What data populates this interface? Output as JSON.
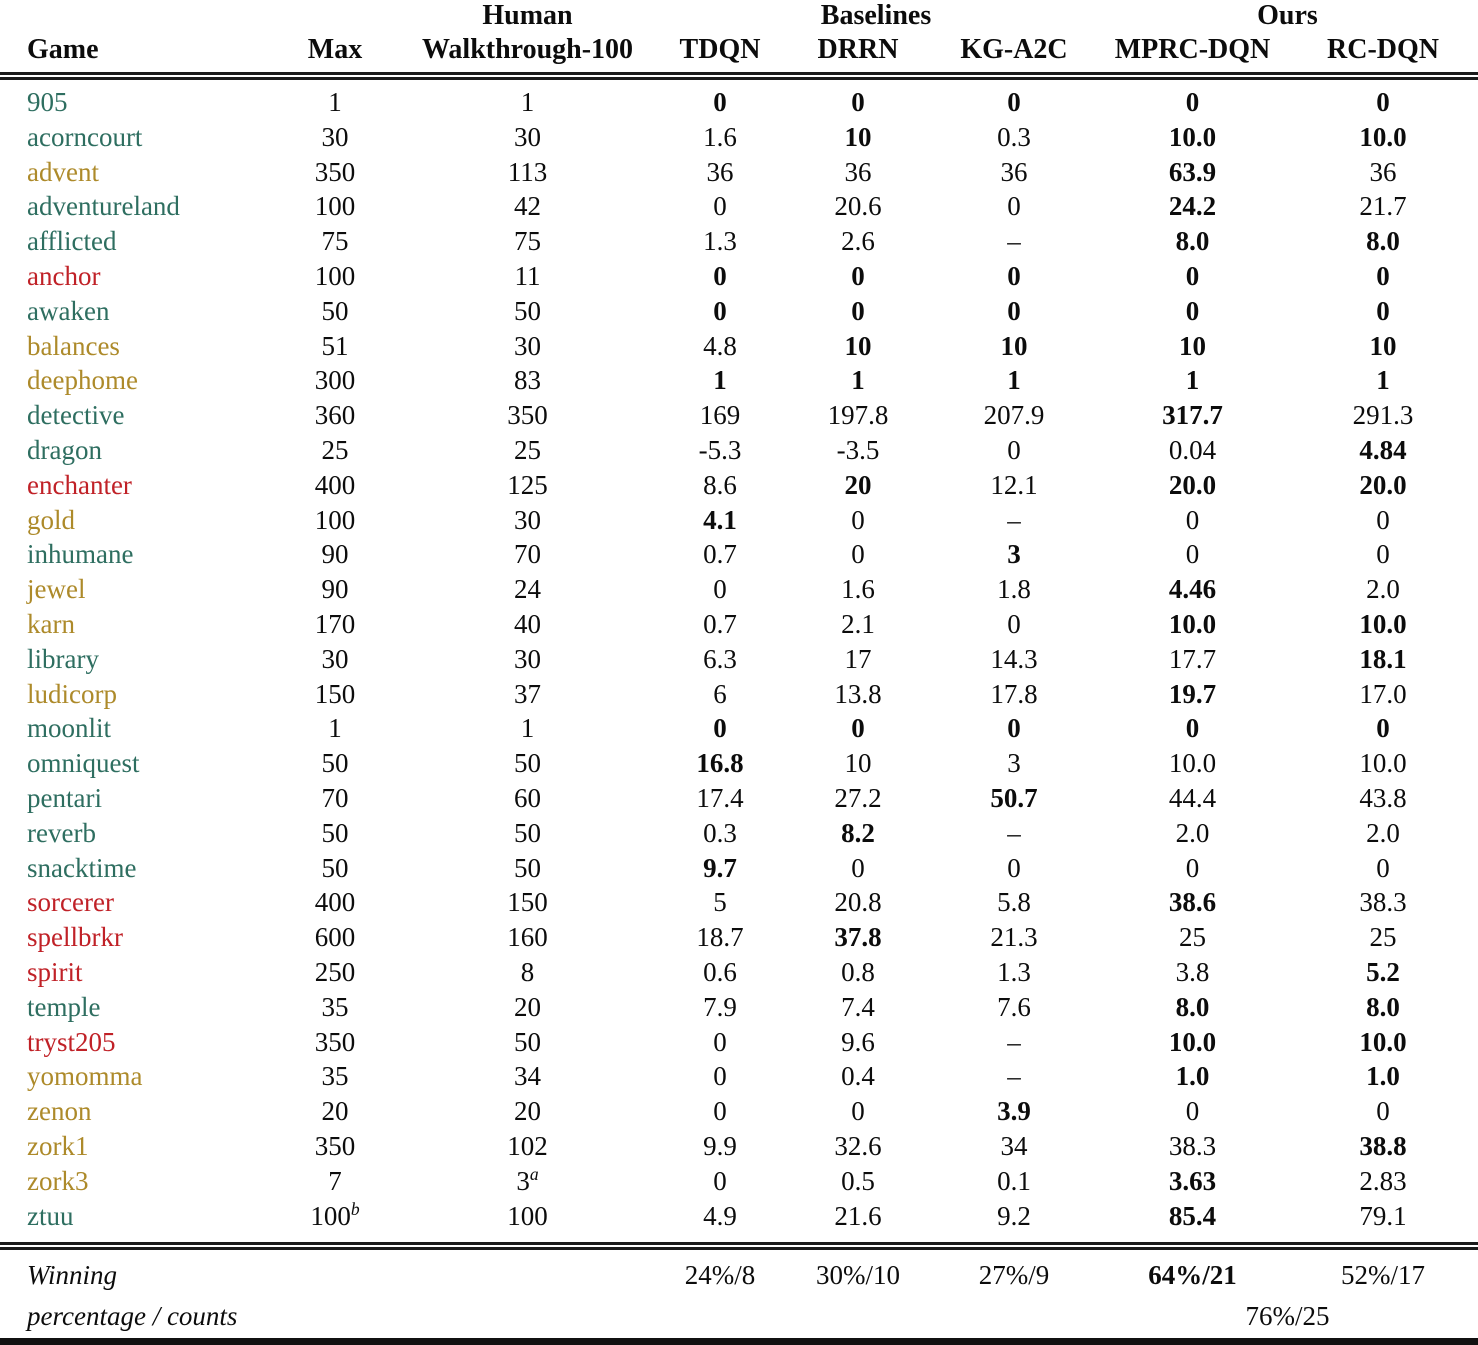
{
  "header": {
    "group_human": "Human",
    "group_baselines": "Baselines",
    "group_ours": "Ours",
    "columns": [
      "Game",
      "Max",
      "Walkthrough-100",
      "TDQN",
      "DRRN",
      "KG-A2C",
      "MPRC-DQN",
      "RC-DQN"
    ]
  },
  "legend_colors": {
    "green": "#2e6e60",
    "olive": "#ad8a2a",
    "red": "#c02127",
    "text": "#0c0c0c"
  },
  "rows": [
    {
      "game": "905",
      "color": "green",
      "cells": [
        {
          "t": "1"
        },
        {
          "t": "1"
        },
        {
          "t": "0",
          "b": 1
        },
        {
          "t": "0",
          "b": 1
        },
        {
          "t": "0",
          "b": 1
        },
        {
          "t": "0",
          "b": 1
        },
        {
          "t": "0",
          "b": 1
        }
      ]
    },
    {
      "game": "acorncourt",
      "color": "green",
      "cells": [
        {
          "t": "30"
        },
        {
          "t": "30"
        },
        {
          "t": "1.6"
        },
        {
          "t": "10",
          "b": 1
        },
        {
          "t": "0.3"
        },
        {
          "t": "10.0",
          "b": 1
        },
        {
          "t": "10.0",
          "b": 1
        }
      ]
    },
    {
      "game": "advent",
      "color": "olive",
      "cells": [
        {
          "t": "350"
        },
        {
          "t": "113"
        },
        {
          "t": "36"
        },
        {
          "t": "36"
        },
        {
          "t": "36"
        },
        {
          "t": "63.9",
          "b": 1
        },
        {
          "t": "36"
        }
      ]
    },
    {
      "game": "adventureland",
      "color": "green",
      "cells": [
        {
          "t": "100"
        },
        {
          "t": "42"
        },
        {
          "t": "0"
        },
        {
          "t": "20.6"
        },
        {
          "t": "0"
        },
        {
          "t": "24.2",
          "b": 1
        },
        {
          "t": "21.7"
        }
      ]
    },
    {
      "game": "afflicted",
      "color": "green",
      "cells": [
        {
          "t": "75"
        },
        {
          "t": "75"
        },
        {
          "t": "1.3"
        },
        {
          "t": "2.6"
        },
        {
          "t": "–"
        },
        {
          "t": "8.0",
          "b": 1
        },
        {
          "t": "8.0",
          "b": 1
        }
      ]
    },
    {
      "game": "anchor",
      "color": "red",
      "cells": [
        {
          "t": "100"
        },
        {
          "t": "11"
        },
        {
          "t": "0",
          "b": 1
        },
        {
          "t": "0",
          "b": 1
        },
        {
          "t": "0",
          "b": 1
        },
        {
          "t": "0",
          "b": 1
        },
        {
          "t": "0",
          "b": 1
        }
      ]
    },
    {
      "game": "awaken",
      "color": "green",
      "cells": [
        {
          "t": "50"
        },
        {
          "t": "50"
        },
        {
          "t": "0",
          "b": 1
        },
        {
          "t": "0",
          "b": 1
        },
        {
          "t": "0",
          "b": 1
        },
        {
          "t": "0",
          "b": 1
        },
        {
          "t": "0",
          "b": 1
        }
      ]
    },
    {
      "game": "balances",
      "color": "olive",
      "cells": [
        {
          "t": "51"
        },
        {
          "t": "30"
        },
        {
          "t": "4.8"
        },
        {
          "t": "10",
          "b": 1
        },
        {
          "t": "10",
          "b": 1
        },
        {
          "t": "10",
          "b": 1
        },
        {
          "t": "10",
          "b": 1
        }
      ]
    },
    {
      "game": "deephome",
      "color": "olive",
      "cells": [
        {
          "t": "300"
        },
        {
          "t": "83"
        },
        {
          "t": "1",
          "b": 1
        },
        {
          "t": "1",
          "b": 1
        },
        {
          "t": "1",
          "b": 1
        },
        {
          "t": "1",
          "b": 1
        },
        {
          "t": "1",
          "b": 1
        }
      ]
    },
    {
      "game": "detective",
      "color": "green",
      "cells": [
        {
          "t": "360"
        },
        {
          "t": "350"
        },
        {
          "t": "169"
        },
        {
          "t": "197.8"
        },
        {
          "t": "207.9"
        },
        {
          "t": "317.7",
          "b": 1
        },
        {
          "t": "291.3"
        }
      ]
    },
    {
      "game": "dragon",
      "color": "green",
      "cells": [
        {
          "t": "25"
        },
        {
          "t": "25"
        },
        {
          "t": "-5.3"
        },
        {
          "t": "-3.5"
        },
        {
          "t": "0"
        },
        {
          "t": "0.04"
        },
        {
          "t": "4.84",
          "b": 1
        }
      ]
    },
    {
      "game": "enchanter",
      "color": "red",
      "cells": [
        {
          "t": "400"
        },
        {
          "t": "125"
        },
        {
          "t": "8.6"
        },
        {
          "t": "20",
          "b": 1
        },
        {
          "t": "12.1"
        },
        {
          "t": "20.0",
          "b": 1
        },
        {
          "t": "20.0",
          "b": 1
        }
      ]
    },
    {
      "game": "gold",
      "color": "olive",
      "cells": [
        {
          "t": "100"
        },
        {
          "t": "30"
        },
        {
          "t": "4.1",
          "b": 1
        },
        {
          "t": "0"
        },
        {
          "t": "–"
        },
        {
          "t": "0"
        },
        {
          "t": "0"
        }
      ]
    },
    {
      "game": "inhumane",
      "color": "green",
      "cells": [
        {
          "t": "90"
        },
        {
          "t": "70"
        },
        {
          "t": "0.7"
        },
        {
          "t": "0"
        },
        {
          "t": "3",
          "b": 1
        },
        {
          "t": "0"
        },
        {
          "t": "0"
        }
      ]
    },
    {
      "game": "jewel",
      "color": "olive",
      "cells": [
        {
          "t": "90"
        },
        {
          "t": "24"
        },
        {
          "t": "0"
        },
        {
          "t": "1.6"
        },
        {
          "t": "1.8"
        },
        {
          "t": "4.46",
          "b": 1
        },
        {
          "t": "2.0"
        }
      ]
    },
    {
      "game": "karn",
      "color": "olive",
      "cells": [
        {
          "t": "170"
        },
        {
          "t": "40"
        },
        {
          "t": "0.7"
        },
        {
          "t": "2.1"
        },
        {
          "t": "0"
        },
        {
          "t": "10.0",
          "b": 1
        },
        {
          "t": "10.0",
          "b": 1
        }
      ]
    },
    {
      "game": "library",
      "color": "green",
      "cells": [
        {
          "t": "30"
        },
        {
          "t": "30"
        },
        {
          "t": "6.3"
        },
        {
          "t": "17"
        },
        {
          "t": "14.3"
        },
        {
          "t": "17.7"
        },
        {
          "t": "18.1",
          "b": 1
        }
      ]
    },
    {
      "game": "ludicorp",
      "color": "olive",
      "cells": [
        {
          "t": "150"
        },
        {
          "t": "37"
        },
        {
          "t": "6"
        },
        {
          "t": "13.8"
        },
        {
          "t": "17.8"
        },
        {
          "t": "19.7",
          "b": 1
        },
        {
          "t": "17.0"
        }
      ]
    },
    {
      "game": "moonlit",
      "color": "green",
      "cells": [
        {
          "t": "1"
        },
        {
          "t": "1"
        },
        {
          "t": "0",
          "b": 1
        },
        {
          "t": "0",
          "b": 1
        },
        {
          "t": "0",
          "b": 1
        },
        {
          "t": "0",
          "b": 1
        },
        {
          "t": "0",
          "b": 1
        }
      ]
    },
    {
      "game": "omniquest",
      "color": "green",
      "cells": [
        {
          "t": "50"
        },
        {
          "t": "50"
        },
        {
          "t": "16.8",
          "b": 1
        },
        {
          "t": "10"
        },
        {
          "t": "3"
        },
        {
          "t": "10.0"
        },
        {
          "t": "10.0"
        }
      ]
    },
    {
      "game": "pentari",
      "color": "green",
      "cells": [
        {
          "t": "70"
        },
        {
          "t": "60"
        },
        {
          "t": "17.4"
        },
        {
          "t": "27.2"
        },
        {
          "t": "50.7",
          "b": 1
        },
        {
          "t": "44.4"
        },
        {
          "t": "43.8"
        }
      ]
    },
    {
      "game": "reverb",
      "color": "green",
      "cells": [
        {
          "t": "50"
        },
        {
          "t": "50"
        },
        {
          "t": "0.3"
        },
        {
          "t": "8.2",
          "b": 1
        },
        {
          "t": "–"
        },
        {
          "t": "2.0"
        },
        {
          "t": "2.0"
        }
      ]
    },
    {
      "game": "snacktime",
      "color": "green",
      "cells": [
        {
          "t": "50"
        },
        {
          "t": "50"
        },
        {
          "t": "9.7",
          "b": 1
        },
        {
          "t": "0"
        },
        {
          "t": "0"
        },
        {
          "t": "0"
        },
        {
          "t": "0"
        }
      ]
    },
    {
      "game": "sorcerer",
      "color": "red",
      "cells": [
        {
          "t": "400"
        },
        {
          "t": "150"
        },
        {
          "t": "5"
        },
        {
          "t": "20.8"
        },
        {
          "t": "5.8"
        },
        {
          "t": "38.6",
          "b": 1
        },
        {
          "t": "38.3"
        }
      ]
    },
    {
      "game": "spellbrkr",
      "color": "red",
      "cells": [
        {
          "t": "600"
        },
        {
          "t": "160"
        },
        {
          "t": "18.7"
        },
        {
          "t": "37.8",
          "b": 1
        },
        {
          "t": "21.3"
        },
        {
          "t": "25"
        },
        {
          "t": "25"
        }
      ]
    },
    {
      "game": "spirit",
      "color": "red",
      "cells": [
        {
          "t": "250"
        },
        {
          "t": "8"
        },
        {
          "t": "0.6"
        },
        {
          "t": "0.8"
        },
        {
          "t": "1.3"
        },
        {
          "t": "3.8"
        },
        {
          "t": "5.2",
          "b": 1
        }
      ]
    },
    {
      "game": "temple",
      "color": "green",
      "cells": [
        {
          "t": "35"
        },
        {
          "t": "20"
        },
        {
          "t": "7.9"
        },
        {
          "t": "7.4"
        },
        {
          "t": "7.6"
        },
        {
          "t": "8.0",
          "b": 1
        },
        {
          "t": "8.0",
          "b": 1
        }
      ]
    },
    {
      "game": "tryst205",
      "color": "red",
      "cells": [
        {
          "t": "350"
        },
        {
          "t": "50"
        },
        {
          "t": "0"
        },
        {
          "t": "9.6"
        },
        {
          "t": "–"
        },
        {
          "t": "10.0",
          "b": 1
        },
        {
          "t": "10.0",
          "b": 1
        }
      ]
    },
    {
      "game": "yomomma",
      "color": "olive",
      "cells": [
        {
          "t": "35"
        },
        {
          "t": "34"
        },
        {
          "t": "0"
        },
        {
          "t": "0.4"
        },
        {
          "t": "–"
        },
        {
          "t": "1.0",
          "b": 1
        },
        {
          "t": "1.0",
          "b": 1
        }
      ]
    },
    {
      "game": "zenon",
      "color": "olive",
      "cells": [
        {
          "t": "20"
        },
        {
          "t": "20"
        },
        {
          "t": "0"
        },
        {
          "t": "0"
        },
        {
          "t": "3.9",
          "b": 1
        },
        {
          "t": "0"
        },
        {
          "t": "0"
        }
      ]
    },
    {
      "game": "zork1",
      "color": "olive",
      "cells": [
        {
          "t": "350"
        },
        {
          "t": "102"
        },
        {
          "t": "9.9"
        },
        {
          "t": "32.6"
        },
        {
          "t": "34"
        },
        {
          "t": "38.3"
        },
        {
          "t": "38.8",
          "b": 1
        }
      ]
    },
    {
      "game": "zork3",
      "color": "olive",
      "cells": [
        {
          "t": "7"
        },
        {
          "t": "3",
          "sup": "a"
        },
        {
          "t": "0"
        },
        {
          "t": "0.5"
        },
        {
          "t": "0.1"
        },
        {
          "t": "3.63",
          "b": 1
        },
        {
          "t": "2.83"
        }
      ]
    },
    {
      "game": "ztuu",
      "color": "green",
      "cells": [
        {
          "t": "100",
          "sup": "b"
        },
        {
          "t": "100"
        },
        {
          "t": "4.9"
        },
        {
          "t": "21.6"
        },
        {
          "t": "9.2"
        },
        {
          "t": "85.4",
          "b": 1
        },
        {
          "t": "79.1"
        }
      ]
    }
  ],
  "footer": {
    "line1": "Winning",
    "line2": "percentage / counts",
    "values": [
      {
        "t": "24%/8"
      },
      {
        "t": "30%/10"
      },
      {
        "t": "27%/9"
      },
      {
        "t": "64%/21",
        "b": 1
      },
      {
        "t": "52%/17"
      }
    ],
    "ours_combined": "76%/25"
  }
}
